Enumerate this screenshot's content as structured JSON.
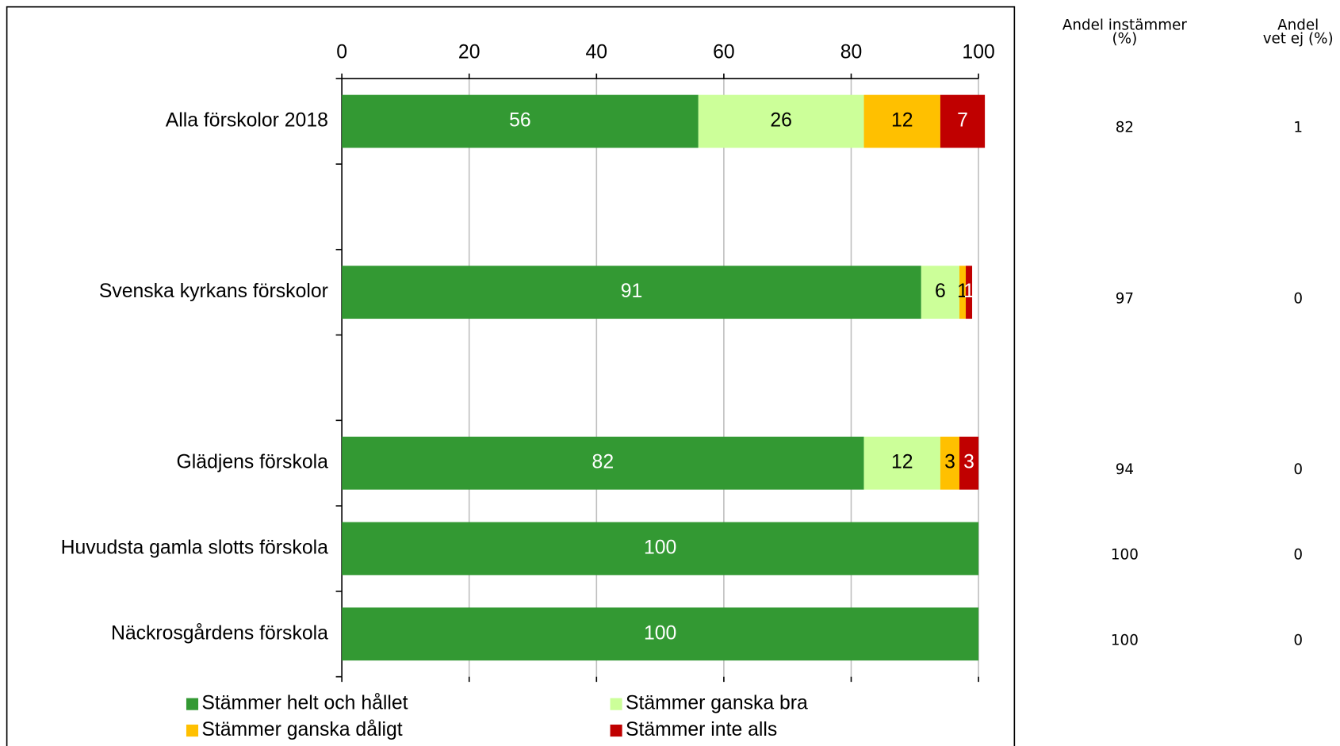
{
  "chart_data": {
    "type": "stacked_bar_horizontal",
    "categories": [
      "Alla förskolor 2018",
      null,
      "Svenska kyrkans förskolor",
      null,
      "Glädjens förskola",
      "Huvudsta gamla slotts förskola",
      "Näckrosgårdens förskola"
    ],
    "series": [
      {
        "name": "Stämmer helt och hållet",
        "color": "#339933",
        "label_color": "#ffffff",
        "values": [
          56,
          null,
          91,
          null,
          82,
          100,
          100
        ]
      },
      {
        "name": "Stämmer ganska bra",
        "color": "#ccff99",
        "label_color": "#000000",
        "values": [
          26,
          null,
          6,
          null,
          12,
          null,
          null
        ]
      },
      {
        "name": "Stämmer ganska dåligt",
        "color": "#ffc000",
        "label_color": "#000000",
        "values": [
          12,
          null,
          1,
          null,
          3,
          null,
          null
        ]
      },
      {
        "name": "Stämmer inte alls",
        "color": "#c00000",
        "label_color": "#ffffff",
        "values": [
          7,
          null,
          1,
          null,
          3,
          null,
          null
        ]
      }
    ],
    "xlim": [
      0,
      100
    ],
    "xticks": [
      0,
      20,
      40,
      60,
      80,
      100
    ],
    "grid": true,
    "legend": "bottom",
    "side_table": {
      "columns": [
        {
          "header": [
            "Andel instämmer",
            "(%)"
          ],
          "values": [
            "82",
            null,
            "97",
            null,
            "94",
            "100",
            "100"
          ]
        },
        {
          "header": [
            "Andel",
            "vet ej (%)"
          ],
          "values": [
            "1",
            null,
            "0",
            null,
            "0",
            "0",
            "0"
          ]
        }
      ]
    }
  }
}
